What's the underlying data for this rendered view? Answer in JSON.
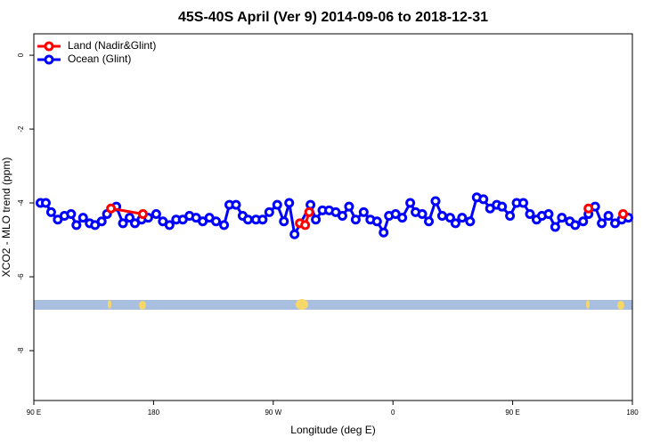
{
  "chart_data": {
    "type": "line",
    "title": "45S-40S April (Ver 9)   2014-09-06 to 2018-12-31",
    "xlabel": "Longitude (deg E)",
    "ylabel": "XCO2 - MLO trend (ppm)",
    "xlim": [
      90,
      540
    ],
    "ylim": [
      -9.35,
      0.58
    ],
    "xticks": [
      {
        "value": 90,
        "label": "90 E"
      },
      {
        "value": 180,
        "label": "180"
      },
      {
        "value": 270,
        "label": "90 W"
      },
      {
        "value": 360,
        "label": "0"
      },
      {
        "value": 450,
        "label": "90 E"
      },
      {
        "value": 540,
        "label": "180"
      }
    ],
    "yticks": [
      0,
      -2,
      -4,
      -6,
      -8
    ],
    "legend": "top-left",
    "series": [
      {
        "name": "Land (Nadir&Glint)",
        "color": "#ff0000",
        "x": [
          148,
          172,
          290,
          294,
          297,
          507,
          533
        ],
        "values": [
          -4.15,
          -4.3,
          -4.55,
          -4.6,
          -4.25,
          -4.15,
          -4.3
        ]
      },
      {
        "name": "Ocean (Glint)",
        "color": "#0000ff",
        "x": [
          95,
          99,
          103,
          108,
          113,
          118,
          122,
          127,
          132,
          136,
          141,
          145,
          152,
          157,
          162,
          166,
          171,
          176,
          182,
          187,
          192,
          197,
          202,
          207,
          212,
          217,
          222,
          227,
          233,
          237,
          242,
          247,
          251,
          257,
          262,
          267,
          273,
          278,
          282,
          286,
          298,
          302,
          307,
          312,
          317,
          322,
          327,
          332,
          338,
          343,
          348,
          353,
          357,
          362,
          367,
          373,
          377,
          382,
          387,
          392,
          397,
          403,
          407,
          412,
          418,
          423,
          428,
          433,
          438,
          442,
          448,
          453,
          458,
          463,
          468,
          472,
          477,
          482,
          487,
          493,
          497,
          503,
          507,
          512,
          517,
          522,
          527,
          532,
          537
        ],
        "values": [
          -4.0,
          -4.0,
          -4.25,
          -4.45,
          -4.35,
          -4.3,
          -4.6,
          -4.4,
          -4.55,
          -4.6,
          -4.5,
          -4.3,
          -4.1,
          -4.55,
          -4.4,
          -4.55,
          -4.45,
          -4.4,
          -4.3,
          -4.5,
          -4.6,
          -4.45,
          -4.45,
          -4.35,
          -4.4,
          -4.5,
          -4.4,
          -4.5,
          -4.6,
          -4.05,
          -4.05,
          -4.35,
          -4.45,
          -4.45,
          -4.45,
          -4.25,
          -4.05,
          -4.5,
          -4.0,
          -4.85,
          -4.05,
          -4.45,
          -4.2,
          -4.2,
          -4.25,
          -4.35,
          -4.1,
          -4.45,
          -4.25,
          -4.45,
          -4.5,
          -4.8,
          -4.35,
          -4.3,
          -4.4,
          -4.0,
          -4.25,
          -4.3,
          -4.5,
          -3.95,
          -4.35,
          -4.4,
          -4.55,
          -4.4,
          -4.5,
          -3.85,
          -3.9,
          -4.15,
          -4.05,
          -4.1,
          -4.35,
          -4.0,
          -4.0,
          -4.3,
          -4.45,
          -4.35,
          -4.3,
          -4.65,
          -4.4,
          -4.5,
          -4.6,
          -4.5,
          -4.3,
          -4.1,
          -4.55,
          -4.35,
          -4.55,
          -4.45,
          -4.4
        ]
      }
    ]
  }
}
